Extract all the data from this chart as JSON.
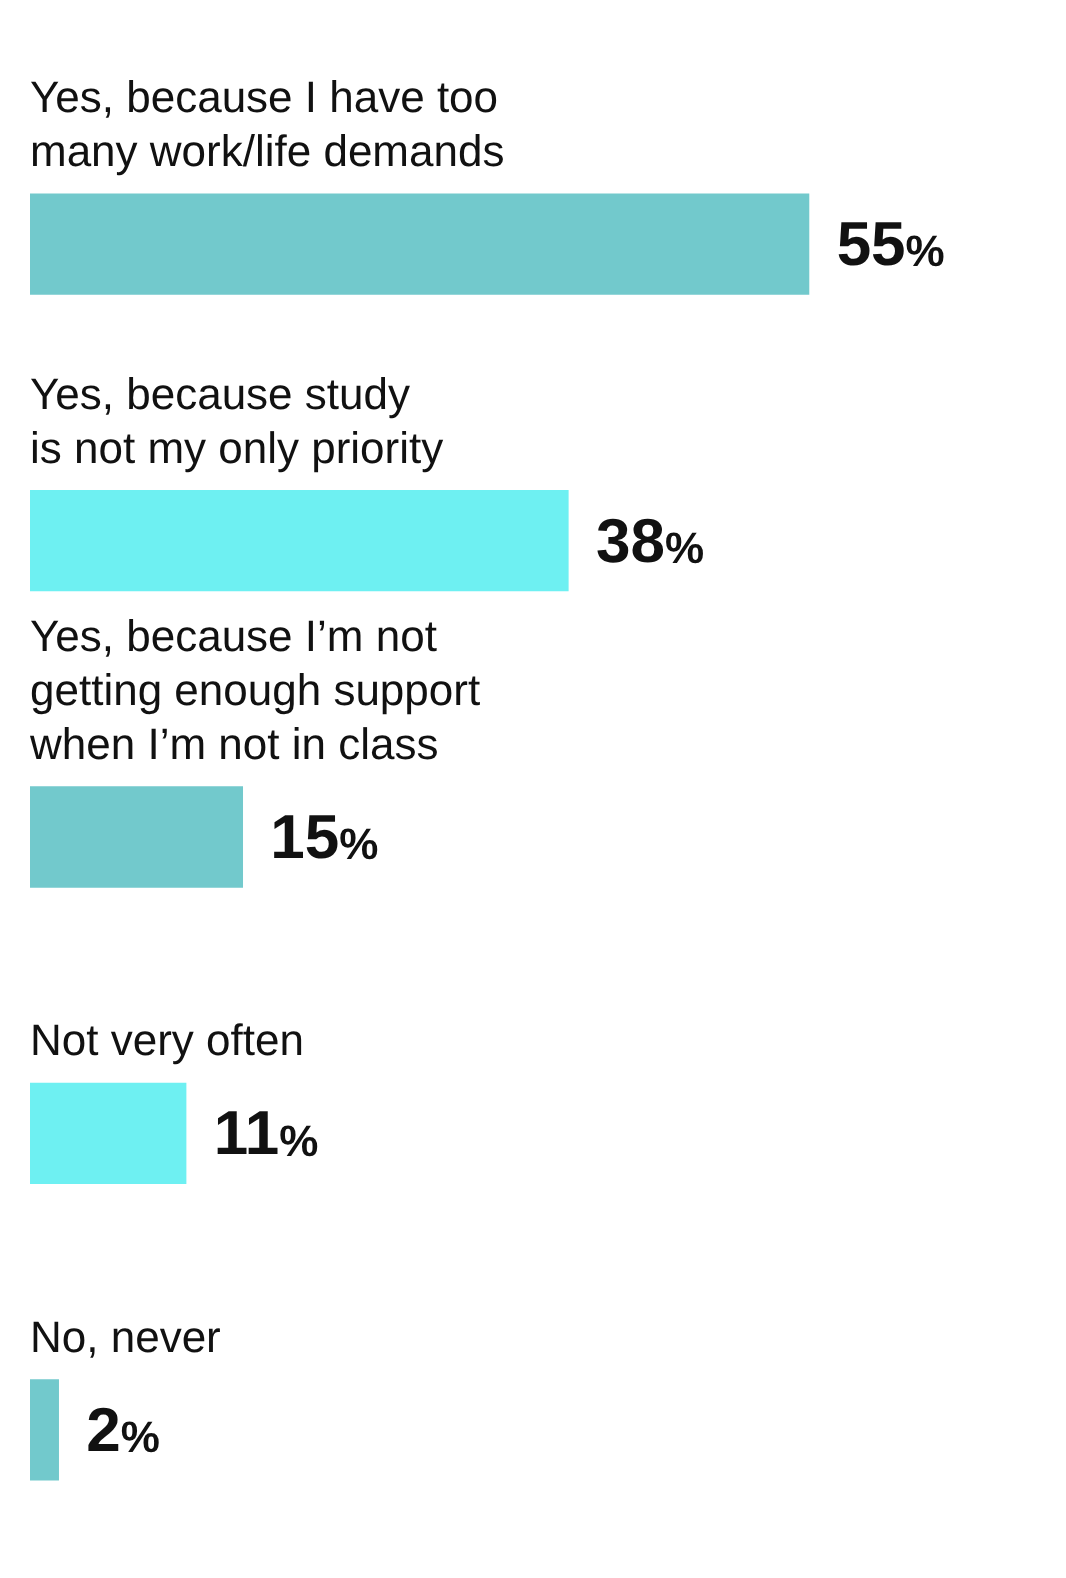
{
  "chart_data": {
    "type": "bar",
    "orientation": "horizontal",
    "categories": [
      "Yes, because I have too\nmany work/life demands",
      "Yes, because study\nis not my only priority",
      "Yes, because I’m not\ngetting enough support\nwhen I’m not in class",
      "Not very often",
      "No, never"
    ],
    "values": [
      55,
      38,
      15,
      11,
      2
    ],
    "colors": [
      "#72c9cc",
      "#6ef0f2",
      "#72c9cc",
      "#6ef0f2",
      "#72c9cc"
    ],
    "value_labels": [
      "55%",
      "38%",
      "15%",
      "11%",
      "2%"
    ],
    "legend": false
  }
}
